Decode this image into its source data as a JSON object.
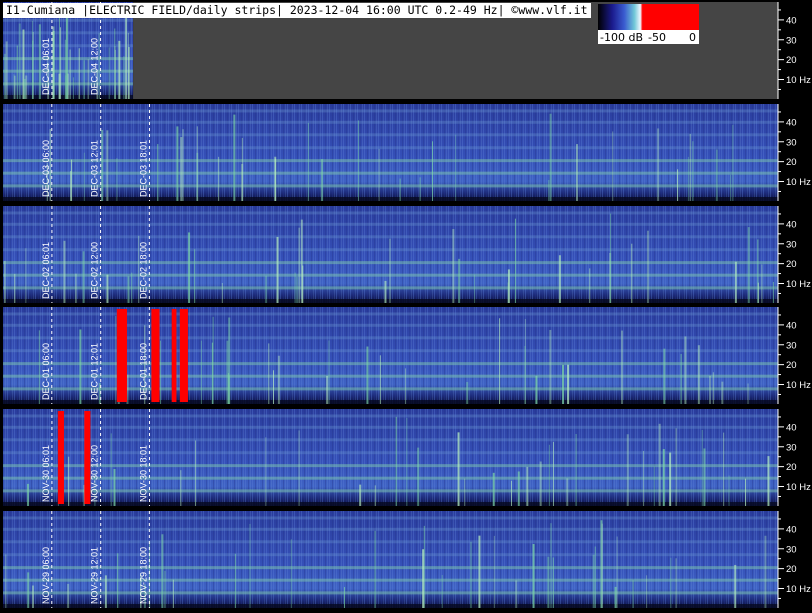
{
  "title": "I1-Cumiana |ELECTRIC FIELD/daily strips| 2023-12-04 16:00 UTC 0.2-49 Hz| ©www.vlf.it",
  "colors": {
    "background": "#000000",
    "panel_low": "#1f2f8c",
    "panel_mid": "#4a6bd0",
    "band_green": "#8fe0a0",
    "saturation": "#ff0000",
    "no_data": "#454545",
    "marker": "#ffffff"
  },
  "colorbar": {
    "labels": [
      "-100 dB",
      "-50",
      "0"
    ]
  },
  "chart_data": {
    "type": "heatmap",
    "title": "I1-Cumiana |ELECTRIC FIELD/daily strips| 2023-12-04 16:00 UTC 0.2-49 Hz| ©www.vlf.it",
    "xlabel": "",
    "ylabel": "",
    "ylim": [
      0.2,
      49
    ],
    "color_scale": {
      "min_db": -100,
      "max_db": 0
    },
    "y_ticks": [
      10,
      20,
      30,
      40
    ],
    "y_tick_labels": [
      "10 Hz",
      "20",
      "30",
      "40"
    ],
    "strips": [
      {
        "date": "DEC-04",
        "data_until": "16:00",
        "markers": [
          {
            "time": "06:01",
            "label": "DEC-04   06:01"
          },
          {
            "time": "12:00",
            "label": "DEC-04   12:00"
          }
        ]
      },
      {
        "date": "DEC-03",
        "markers": [
          {
            "time": "06:00",
            "label": "DEC-03   06:00"
          },
          {
            "time": "12:01",
            "label": "DEC-03   12:01"
          },
          {
            "time": "18:01",
            "label": "DEC-03   18:01"
          }
        ]
      },
      {
        "date": "DEC-02",
        "markers": [
          {
            "time": "06:01",
            "label": "DEC-02   06:01"
          },
          {
            "time": "12:00",
            "label": "DEC-02   12:00"
          },
          {
            "time": "18:00",
            "label": "DEC-02   18:00"
          }
        ]
      },
      {
        "date": "DEC-01",
        "markers": [
          {
            "time": "06:00",
            "label": "DEC-01   06:00"
          },
          {
            "time": "12:01",
            "label": "DEC-01   12:01"
          },
          {
            "time": "18:00",
            "label": "DEC-01   18:00"
          }
        ]
      },
      {
        "date": "NOV-30",
        "markers": [
          {
            "time": "06:01",
            "label": "NOV-30   06:01"
          },
          {
            "time": "12:00",
            "label": "NOV-30   12:00"
          },
          {
            "time": "18:01",
            "label": "NOV-30   18:01"
          }
        ]
      },
      {
        "date": "NOV-29",
        "markers": [
          {
            "time": "06:00",
            "label": "NOV-29   06:00"
          },
          {
            "time": "12:01",
            "label": "NOV-29   12:01"
          },
          {
            "time": "18:00",
            "label": "NOV-29   18:00"
          }
        ]
      }
    ],
    "saturated_events": [
      {
        "strip": "DEC-01",
        "start": "14:00",
        "end": "15:15"
      },
      {
        "strip": "DEC-01",
        "start": "18:15",
        "end": "19:15"
      },
      {
        "strip": "DEC-01",
        "start": "20:45",
        "end": "21:20"
      },
      {
        "strip": "DEC-01",
        "start": "21:45",
        "end": "22:45"
      },
      {
        "strip": "NOV-30",
        "start": "06:45",
        "end": "07:30"
      },
      {
        "strip": "NOV-30",
        "start": "10:00",
        "end": "10:45"
      }
    ]
  }
}
